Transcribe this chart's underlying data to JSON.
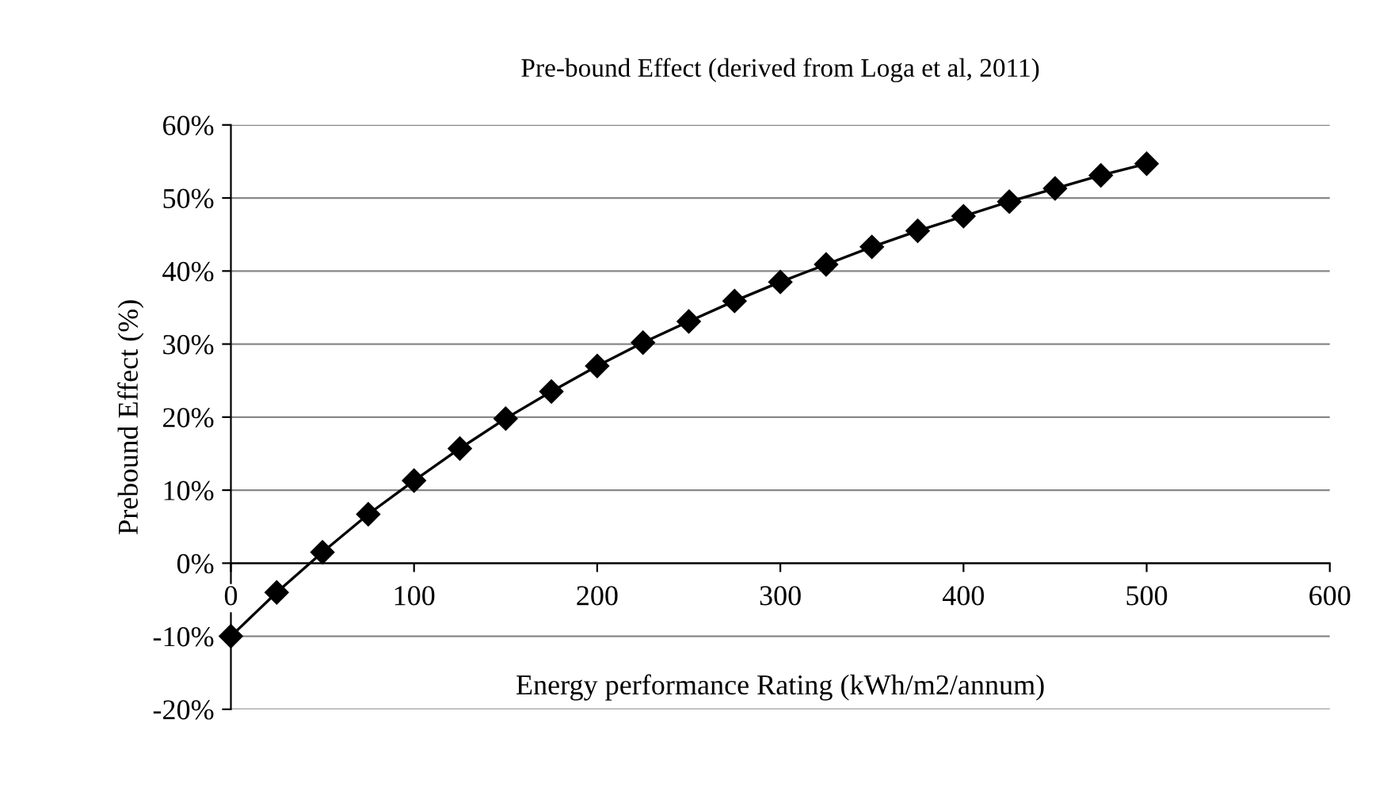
{
  "chart_data": {
    "type": "line",
    "title": "Pre-bound Effect (derived from Loga et al, 2011)",
    "xlabel": "Energy performance Rating (kWh/m2/annum)",
    "ylabel": "Prebound Effect (%)",
    "x": [
      0,
      25,
      50,
      75,
      100,
      125,
      150,
      175,
      200,
      225,
      250,
      275,
      300,
      325,
      350,
      375,
      400,
      425,
      450,
      475,
      500
    ],
    "series": [
      {
        "color": "#000000",
        "values": [
          -10,
          -4,
          1.5,
          6.7,
          11.3,
          15.7,
          19.8,
          23.5,
          27,
          30.2,
          33.1,
          35.9,
          38.5,
          40.9,
          43.3,
          45.5,
          47.5,
          49.5,
          51.3,
          53.1,
          54.7
        ]
      }
    ],
    "xlim": [
      0,
      600
    ],
    "xticks": [
      0,
      100,
      200,
      300,
      400,
      500,
      600
    ],
    "ylim": [
      -20,
      60
    ],
    "yticks": [
      {
        "value": -20,
        "label": "-20%"
      },
      {
        "value": -10,
        "label": "-10%"
      },
      {
        "value": 0,
        "label": "0%"
      },
      {
        "value": 10,
        "label": "10%"
      },
      {
        "value": 20,
        "label": "20%"
      },
      {
        "value": 30,
        "label": "30%"
      },
      {
        "value": 40,
        "label": "40%"
      },
      {
        "value": 50,
        "label": "50%"
      },
      {
        "value": 60,
        "label": "60%"
      }
    ],
    "grid": "y",
    "marker": "diamond",
    "line_style": "solid"
  }
}
